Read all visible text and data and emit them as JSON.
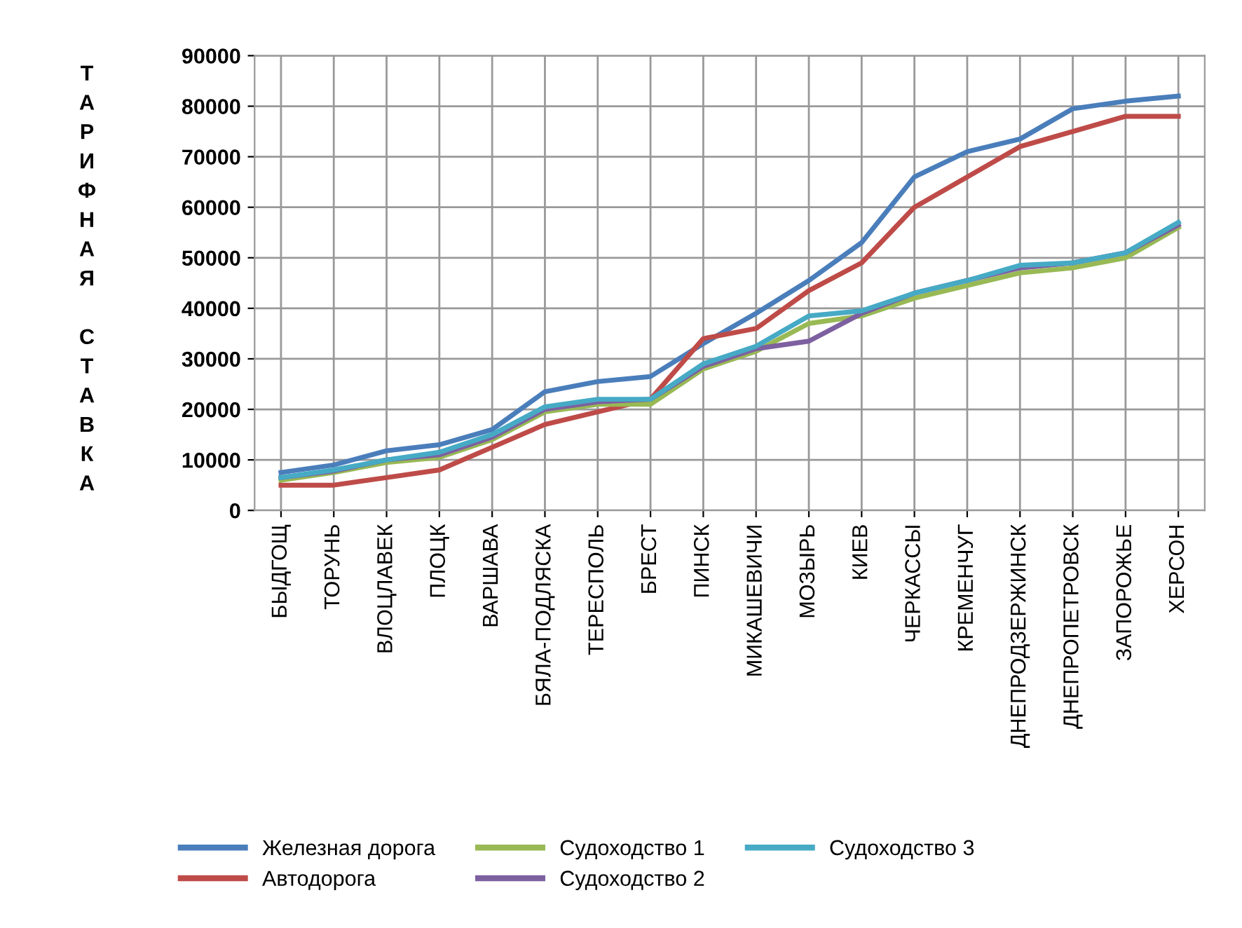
{
  "chart_data": {
    "type": "line",
    "ylabel": "ТАРИФНАЯ СТАВКА",
    "categories": [
      "БЫДГОЩ",
      "ТОРУНЬ",
      "ВЛОЦЛАВЕК",
      "ПЛОЦК",
      "ВАРШАВА",
      "БЯЛА-ПОДЛЯСКА",
      "ТЕРЕСПОЛЬ",
      "БРЕСТ",
      "ПИНСК",
      "МИКАШЕВИЧИ",
      "МОЗЫРЬ",
      "КИЕВ",
      "ЧЕРКАССЫ",
      "КРЕМЕНЧУГ",
      "ДНЕПРОДЗЕРЖИНСК",
      "ДНЕПРОПЕТРОВСК",
      "ЗАПОРОЖЬЕ",
      "ХЕРСОН"
    ],
    "series": [
      {
        "name": "Железная дорога",
        "color": "#4a7ebb",
        "values": [
          7500,
          9000,
          11800,
          13000,
          16000,
          23500,
          25500,
          26500,
          33000,
          39000,
          45500,
          53000,
          66000,
          71000,
          73500,
          79500,
          81000,
          82000
        ]
      },
      {
        "name": "Автодорога",
        "color": "#be4b48",
        "values": [
          5000,
          5000,
          6500,
          8000,
          12500,
          17000,
          19500,
          22000,
          34000,
          36000,
          43500,
          49000,
          60000,
          66000,
          72000,
          75000,
          78000,
          78000
        ]
      },
      {
        "name": "Судоходство 1",
        "color": "#98b954",
        "values": [
          6000,
          7500,
          9500,
          10500,
          14000,
          19500,
          21000,
          21000,
          28000,
          31500,
          37000,
          38500,
          42000,
          44500,
          47000,
          48000,
          50000,
          56000
        ]
      },
      {
        "name": "Судоходство 2",
        "color": "#7d60a0",
        "values": [
          6500,
          7800,
          10000,
          11000,
          14500,
          20000,
          21500,
          22000,
          28500,
          32000,
          33500,
          39000,
          43000,
          45500,
          48000,
          49000,
          51000,
          56500
        ]
      },
      {
        "name": "Судоходство 3",
        "color": "#46aac5",
        "values": [
          6500,
          8000,
          10000,
          11500,
          15000,
          20500,
          22000,
          22000,
          29000,
          32500,
          38500,
          39500,
          43000,
          45500,
          48500,
          49000,
          51000,
          57000
        ]
      }
    ],
    "ylim": [
      0,
      90000
    ],
    "yticks": [
      0,
      10000,
      20000,
      30000,
      40000,
      50000,
      60000,
      70000,
      80000,
      90000
    ],
    "grid": true,
    "legend": "bottom",
    "marker": "none",
    "line_style": "solid"
  }
}
